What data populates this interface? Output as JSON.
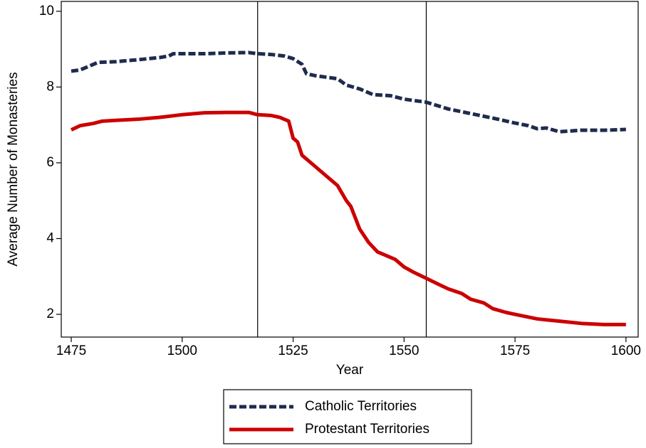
{
  "chart_data": {
    "type": "line",
    "x_label": "Year",
    "y_label": "Average Number of Monasteries",
    "xlim": [
      1472.75,
      1602.75
    ],
    "ylim": [
      1.4,
      10.26
    ],
    "xticks": [
      1475,
      1500,
      1525,
      1550,
      1575,
      1600
    ],
    "yticks": [
      2,
      4,
      6,
      8,
      10
    ],
    "vlines": [
      1517,
      1555
    ],
    "legend": "bottom",
    "series": [
      {
        "name": "Catholic Territories",
        "color": "#1f2b4d",
        "dashed": true,
        "x": [
          1475,
          1477,
          1480,
          1481,
          1485,
          1490,
          1495,
          1497,
          1498,
          1505,
          1510,
          1515,
          1517,
          1520,
          1523,
          1525,
          1527,
          1528,
          1530,
          1535,
          1537,
          1540,
          1543,
          1547,
          1550,
          1555,
          1560,
          1565,
          1570,
          1575,
          1578,
          1580,
          1582,
          1585,
          1590,
          1595,
          1600
        ],
        "values": [
          8.42,
          8.45,
          8.6,
          8.65,
          8.67,
          8.72,
          8.78,
          8.82,
          8.88,
          8.88,
          8.9,
          8.91,
          8.88,
          8.86,
          8.82,
          8.75,
          8.6,
          8.35,
          8.3,
          8.22,
          8.05,
          7.95,
          7.8,
          7.77,
          7.68,
          7.6,
          7.42,
          7.3,
          7.18,
          7.05,
          6.98,
          6.9,
          6.92,
          6.82,
          6.86,
          6.86,
          6.88
        ]
      },
      {
        "name": "Protestant Territories",
        "color": "#cc0000",
        "dashed": false,
        "x": [
          1475,
          1477,
          1480,
          1482,
          1485,
          1490,
          1495,
          1500,
          1505,
          1510,
          1515,
          1517,
          1520,
          1522,
          1524,
          1525,
          1526,
          1527,
          1530,
          1533,
          1535,
          1537,
          1538,
          1540,
          1542,
          1544,
          1546,
          1548,
          1550,
          1552,
          1555,
          1558,
          1560,
          1563,
          1565,
          1568,
          1570,
          1573,
          1575,
          1580,
          1585,
          1590,
          1595,
          1600
        ],
        "values": [
          6.87,
          6.98,
          7.04,
          7.1,
          7.12,
          7.15,
          7.2,
          7.27,
          7.32,
          7.33,
          7.33,
          7.27,
          7.25,
          7.2,
          7.1,
          6.65,
          6.55,
          6.2,
          5.9,
          5.6,
          5.4,
          5.0,
          4.85,
          4.25,
          3.9,
          3.65,
          3.55,
          3.45,
          3.25,
          3.12,
          2.95,
          2.78,
          2.67,
          2.55,
          2.4,
          2.3,
          2.15,
          2.05,
          2.0,
          1.88,
          1.82,
          1.76,
          1.73,
          1.73
        ]
      }
    ]
  }
}
